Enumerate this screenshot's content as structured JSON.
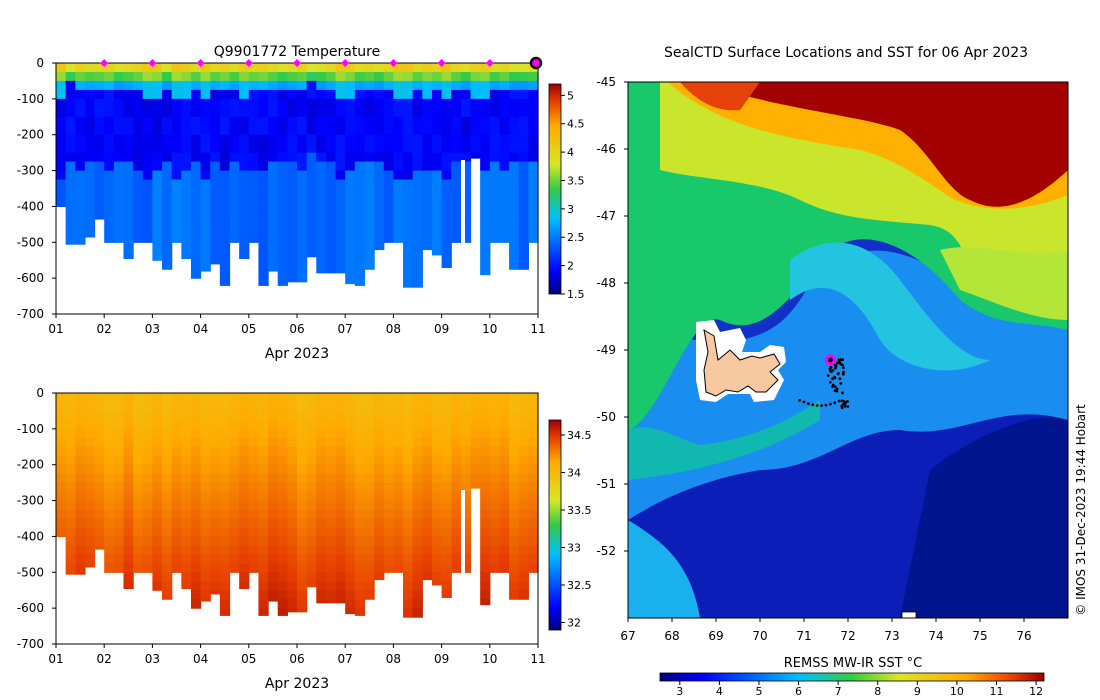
{
  "figure": {
    "left_top_title": "Q9901772  Temperature",
    "right_title": "SealCTD Surface Locations and SST for 06 Apr 2023",
    "credit": "© IMOS 31-Dec-2023 19:44 Hobart"
  },
  "colors": {
    "land": "#f8c8a0",
    "track": "#000000",
    "marker": "#ff00ff",
    "axis": "#000000"
  },
  "chart_data": [
    {
      "id": "temperature-section",
      "type": "heatmap",
      "title": "Q9901772  Temperature",
      "xlabel": "Apr 2023",
      "ylabel": "",
      "xlim": [
        1,
        11
      ],
      "ylim": [
        -700,
        0
      ],
      "x_ticks": [
        "01",
        "02",
        "03",
        "04",
        "05",
        "06",
        "07",
        "08",
        "09",
        "10",
        "11"
      ],
      "y_ticks": [
        "0",
        "-100",
        "-200",
        "-300",
        "-400",
        "-500",
        "-600",
        "-700"
      ],
      "colorbar": {
        "range": [
          1.5,
          5.2
        ],
        "ticks": [
          "1.5",
          "2",
          "2.5",
          "3",
          "3.5",
          "4",
          "4.5",
          "5"
        ]
      },
      "profile_markers_day": [
        2,
        3,
        4,
        5,
        6,
        7,
        8,
        9,
        10
      ],
      "profile_max_depths": [
        400,
        505,
        505,
        485,
        435,
        500,
        500,
        545,
        500,
        500,
        550,
        575,
        500,
        545,
        600,
        580,
        560,
        620,
        500,
        545,
        500,
        620,
        580,
        620,
        610,
        610,
        540,
        585,
        585,
        585,
        615,
        620,
        575,
        520,
        500,
        500,
        625,
        625,
        520,
        535,
        570,
        500,
        500,
        265,
        590,
        500,
        500,
        575,
        575,
        500
      ]
    },
    {
      "id": "salinity-section",
      "type": "heatmap",
      "title": "",
      "xlabel": "Apr 2023",
      "ylabel": "",
      "xlim": [
        1,
        11
      ],
      "ylim": [
        -700,
        0
      ],
      "x_ticks": [
        "01",
        "02",
        "03",
        "04",
        "05",
        "06",
        "07",
        "08",
        "09",
        "10",
        "11"
      ],
      "y_ticks": [
        "0",
        "-100",
        "-200",
        "-300",
        "-400",
        "-500",
        "-600",
        "-700"
      ],
      "colorbar": {
        "range": [
          31.9,
          34.7
        ],
        "ticks": [
          "32",
          "32.5",
          "33",
          "33.5",
          "34",
          "34.5"
        ]
      }
    },
    {
      "id": "sst-map",
      "type": "heatmap",
      "title": "SealCTD Surface Locations and SST for 06 Apr 2023",
      "xlabel": "",
      "ylabel": "",
      "xlim": [
        67,
        77
      ],
      "ylim": [
        -53,
        -45
      ],
      "x_ticks": [
        "67",
        "68",
        "69",
        "70",
        "71",
        "72",
        "73",
        "74",
        "75",
        "76"
      ],
      "y_ticks": [
        "-45",
        "-46",
        "-47",
        "-48",
        "-49",
        "-50",
        "-51",
        "-52"
      ],
      "colorbar": {
        "label": "REMSS MW-IR SST °C",
        "range": [
          2.5,
          12.2
        ],
        "ticks": [
          "3",
          "4",
          "5",
          "6",
          "7",
          "8",
          "9",
          "10",
          "11",
          "12"
        ]
      },
      "current_position": {
        "lon": 71.6,
        "lat": -49.15
      }
    }
  ]
}
